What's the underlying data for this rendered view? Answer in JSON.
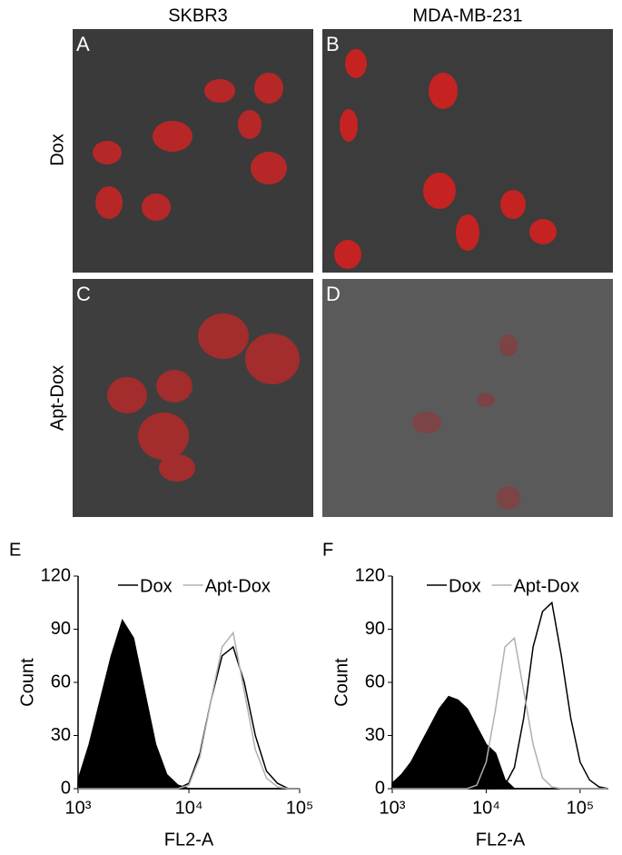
{
  "columns": [
    "SKBR3",
    "MDA-MB-231"
  ],
  "rows": [
    "Dox",
    "Apt-Dox"
  ],
  "panels": [
    "A",
    "B",
    "C",
    "D"
  ],
  "chart_data": [
    {
      "type": "line",
      "label": "E",
      "xlabel": "FL2-A",
      "ylabel": "Count",
      "xscale": "log",
      "legend": "upper right",
      "x": [
        1000,
        1259,
        1585,
        1995,
        2512,
        3162,
        3981,
        5012,
        6310,
        7943,
        10000,
        12589,
        15849,
        19953,
        25119,
        31623,
        39811,
        50119,
        63096,
        79433,
        100000
      ],
      "series": [
        {
          "color": "#000000",
          "fill": true,
          "values": [
            5,
            25,
            50,
            75,
            95,
            85,
            55,
            25,
            8,
            2,
            0,
            0,
            0,
            0,
            0,
            0,
            0,
            0,
            0,
            0,
            0
          ]
        },
        {
          "name": "Dox",
          "color": "#000000",
          "values": [
            0,
            0,
            0,
            0,
            0,
            0,
            0,
            0,
            0,
            0,
            3,
            20,
            50,
            75,
            80,
            60,
            30,
            10,
            3,
            0,
            0
          ]
        },
        {
          "name": "Apt-Dox",
          "color": "#b0b0b0",
          "values": [
            0,
            0,
            0,
            0,
            0,
            0,
            0,
            0,
            0,
            0,
            2,
            18,
            50,
            80,
            88,
            55,
            22,
            6,
            1,
            0,
            0
          ]
        }
      ],
      "xlim": [
        1000,
        100000
      ],
      "xticks": [
        {
          "value": 1000,
          "label": "10³"
        },
        {
          "value": 10000,
          "label": "10⁴"
        },
        {
          "value": 100000,
          "label": "10⁵"
        }
      ],
      "ylim": [
        0,
        120
      ],
      "yticks": [
        0,
        30,
        60,
        90,
        120
      ]
    },
    {
      "type": "line",
      "label": "F",
      "xlabel": "FL2-A",
      "ylabel": "Count",
      "xscale": "log",
      "legend": "upper right",
      "x": [
        1000,
        1259,
        1585,
        1995,
        2512,
        3162,
        3981,
        5012,
        6310,
        7943,
        10000,
        12589,
        15849,
        19953,
        25119,
        31623,
        39811,
        50119,
        63096,
        79433,
        100000,
        125893,
        158489,
        199526
      ],
      "series": [
        {
          "color": "#000000",
          "fill": true,
          "values": [
            3,
            8,
            15,
            25,
            35,
            45,
            52,
            50,
            45,
            35,
            25,
            20,
            5,
            0,
            0,
            0,
            0,
            0,
            0,
            0,
            0,
            0,
            0,
            0
          ]
        },
        {
          "name": "Dox",
          "color": "#000000",
          "values": [
            0,
            0,
            0,
            0,
            0,
            0,
            0,
            0,
            0,
            0,
            0,
            0,
            2,
            12,
            40,
            80,
            100,
            105,
            75,
            40,
            15,
            5,
            1,
            0
          ]
        },
        {
          "name": "Apt-Dox",
          "color": "#b0b0b0",
          "values": [
            0,
            0,
            0,
            0,
            0,
            0,
            0,
            0,
            0,
            2,
            15,
            45,
            80,
            85,
            55,
            25,
            6,
            1,
            0,
            0,
            0,
            0,
            0,
            0
          ]
        }
      ],
      "xlim": [
        1000,
        200000
      ],
      "xticks": [
        {
          "value": 1000,
          "label": "10³"
        },
        {
          "value": 10000,
          "label": "10⁴"
        },
        {
          "value": 100000,
          "label": "10⁵"
        }
      ],
      "ylim": [
        0,
        120
      ],
      "yticks": [
        0,
        30,
        60,
        90,
        120
      ]
    }
  ]
}
